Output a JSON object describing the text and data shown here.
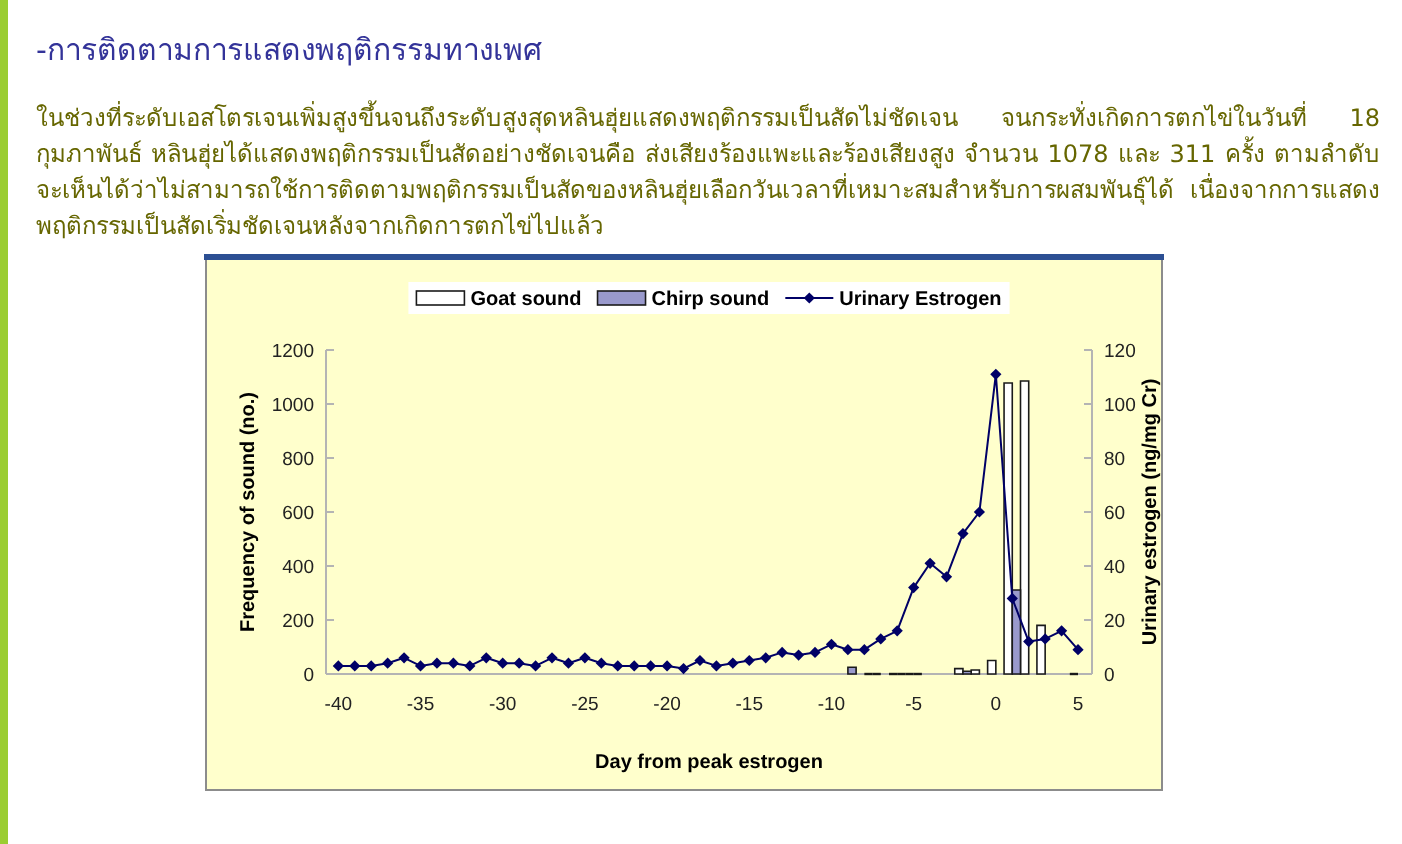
{
  "chart_data": {
    "type": "bar",
    "title": "-การติดตามการแสดงพฤติกรรมทางเพศ",
    "subtitle": "ในช่วงที่ระดับเอสโตรเจนเพิ่มสูงขึ้นจนถึงระดับสูงสุดหลินฮุ่ยแสดงพฤติกรรมเป็นสัดไม่ชัดเจน จนกระทั่งเกิดการตกไข่ในวันที่ 18 กุมภาพันธ์ หลินฮุ่ยได้แสดงพฤติกรรมเป็นสัดอย่างชัดเจนคือ ส่งเสียงร้องแพะและร้องเสียงสูง จำนวน 1078 และ 311 ครั้ง ตามลำดับ จะเห็นได้ว่าไม่สามารถใช้การติดตามพฤติกรรมเป็นสัดของหลินฮุ่ยเลือกวันเวลาที่เหมาะสมสำหรับการผสมพันธุ์ได้ เนื่องจากการแสดงพฤติกรรมเป็นสัดเริ่มชัดเจนหลังจากเกิดการตกไข่ไปแล้ว",
    "xlabel": "Day from peak estrogen",
    "ylabel": "Frequency of sound (no.)",
    "y2label": "Urinary estrogen (ng/mg Cr)",
    "x": [
      -40,
      -39,
      -38,
      -37,
      -36,
      -35,
      -34,
      -33,
      -32,
      -31,
      -30,
      -29,
      -28,
      -27,
      -26,
      -25,
      -24,
      -23,
      -22,
      -21,
      -20,
      -19,
      -18,
      -17,
      -16,
      -15,
      -14,
      -13,
      -12,
      -11,
      -10,
      -9,
      -8,
      -7,
      -6,
      -5,
      -4,
      -3,
      -2,
      -1,
      0,
      1,
      2,
      3,
      4,
      5
    ],
    "series": [
      {
        "name": "Goat sound",
        "color": "#ffffff",
        "values": [
          null,
          null,
          null,
          null,
          null,
          null,
          null,
          null,
          null,
          null,
          null,
          null,
          null,
          null,
          null,
          null,
          null,
          null,
          null,
          null,
          null,
          null,
          null,
          null,
          null,
          null,
          null,
          null,
          null,
          null,
          null,
          null,
          null,
          0,
          0,
          0,
          null,
          null,
          20,
          15,
          50,
          1078,
          1085,
          180,
          null,
          0
        ],
        "colors": [
          null,
          null,
          null,
          null,
          null,
          null,
          null,
          null,
          null,
          null,
          null,
          null,
          null,
          null,
          null,
          null,
          null,
          null,
          null,
          null,
          null,
          null,
          null,
          null,
          null,
          null,
          null,
          null,
          null,
          null,
          null,
          null,
          null,
          "#1a1a1a",
          "#1a1a1a",
          "#1a1a1a",
          null,
          null,
          "#ffffff",
          "#ffffff",
          "#ffffff",
          "#ffffff",
          "#ffffff",
          "#ffffff",
          null,
          "#1a1a1a"
        ]
      },
      {
        "name": "Chirp sound",
        "color": "#9999cc",
        "values": [
          null,
          null,
          null,
          null,
          null,
          null,
          null,
          null,
          null,
          null,
          null,
          null,
          null,
          null,
          null,
          null,
          null,
          null,
          null,
          null,
          null,
          null,
          null,
          null,
          null,
          null,
          null,
          null,
          null,
          null,
          null,
          25,
          0,
          null,
          0,
          0,
          null,
          null,
          10,
          null,
          null,
          311,
          null,
          null,
          null,
          null
        ],
        "colors": [
          null,
          null,
          null,
          null,
          null,
          null,
          null,
          null,
          null,
          null,
          null,
          null,
          null,
          null,
          null,
          null,
          null,
          null,
          null,
          null,
          null,
          null,
          null,
          null,
          null,
          null,
          null,
          null,
          null,
          null,
          null,
          "#9999cc",
          "#1a1a1a",
          null,
          "#1a1a1a",
          "#1a1a1a",
          null,
          null,
          "#9999cc",
          null,
          null,
          "#9999cc",
          null,
          null,
          null,
          null
        ]
      },
      {
        "name": "Urinary Estrogen",
        "type": "line",
        "axis": "y2",
        "color": "#000066",
        "values": [
          3,
          3,
          3,
          4,
          6,
          3,
          4,
          4,
          3,
          6,
          4,
          4,
          3,
          6,
          4,
          6,
          4,
          3,
          3,
          3,
          3,
          2,
          5,
          3,
          4,
          5,
          6,
          8,
          7,
          8,
          11,
          9,
          9,
          13,
          16,
          32,
          41,
          36,
          52,
          60,
          111,
          28,
          12,
          13,
          16,
          9
        ]
      }
    ],
    "xlim": [
      -40.75,
      5.85
    ],
    "xticks": [
      -40,
      -35,
      -30,
      -25,
      -20,
      -15,
      -10,
      -5,
      0,
      5
    ],
    "ylim": [
      0,
      1200
    ],
    "yticks": [
      0,
      200,
      400,
      600,
      800,
      1000,
      1200
    ],
    "y2lim": [
      0,
      120
    ],
    "y2ticks": [
      0,
      20,
      40,
      60,
      80,
      100,
      120
    ],
    "legend": "top",
    "marker": "diamond",
    "line_style": "solid"
  }
}
